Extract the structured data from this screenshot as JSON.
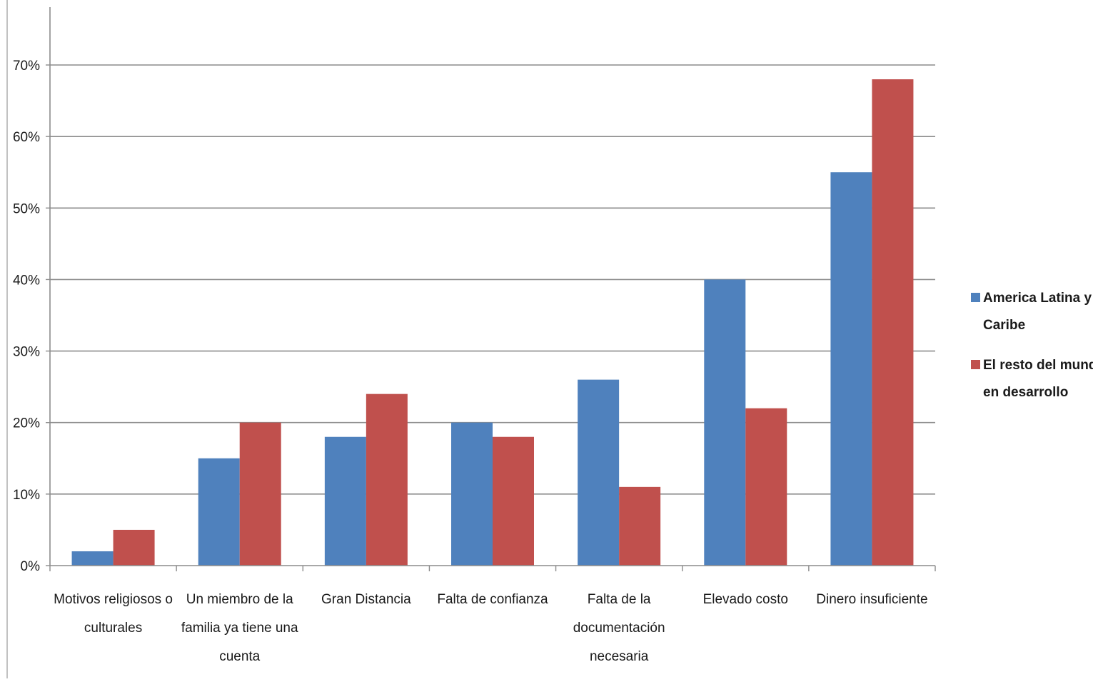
{
  "chart_data": {
    "type": "bar",
    "title": "",
    "xlabel": "",
    "ylabel": "",
    "ylim": [
      0,
      0.7
    ],
    "y_ticks": [
      "0%",
      "10%",
      "20%",
      "30%",
      "40%",
      "50%",
      "60%",
      "70%"
    ],
    "grid": true,
    "legend_position": "right",
    "categories": [
      [
        "Motivos religiosos o",
        "culturales"
      ],
      [
        "Un miembro de la",
        "familia ya tiene una",
        "cuenta"
      ],
      [
        "Gran Distancia"
      ],
      [
        "Falta de confianza"
      ],
      [
        "Falta de la",
        "documentación",
        "necesaria"
      ],
      [
        "Elevado costo"
      ],
      [
        "Dinero insuficiente"
      ]
    ],
    "series": [
      {
        "name": [
          "America Latina y el",
          "Caribe"
        ],
        "color": "#4f81bd",
        "values": [
          0.02,
          0.15,
          0.18,
          0.2,
          0.26,
          0.4,
          0.55
        ]
      },
      {
        "name": [
          "El resto del mundo",
          "en desarrollo"
        ],
        "color": "#c0504d",
        "values": [
          0.05,
          0.2,
          0.24,
          0.18,
          0.11,
          0.22,
          0.68
        ]
      }
    ]
  }
}
